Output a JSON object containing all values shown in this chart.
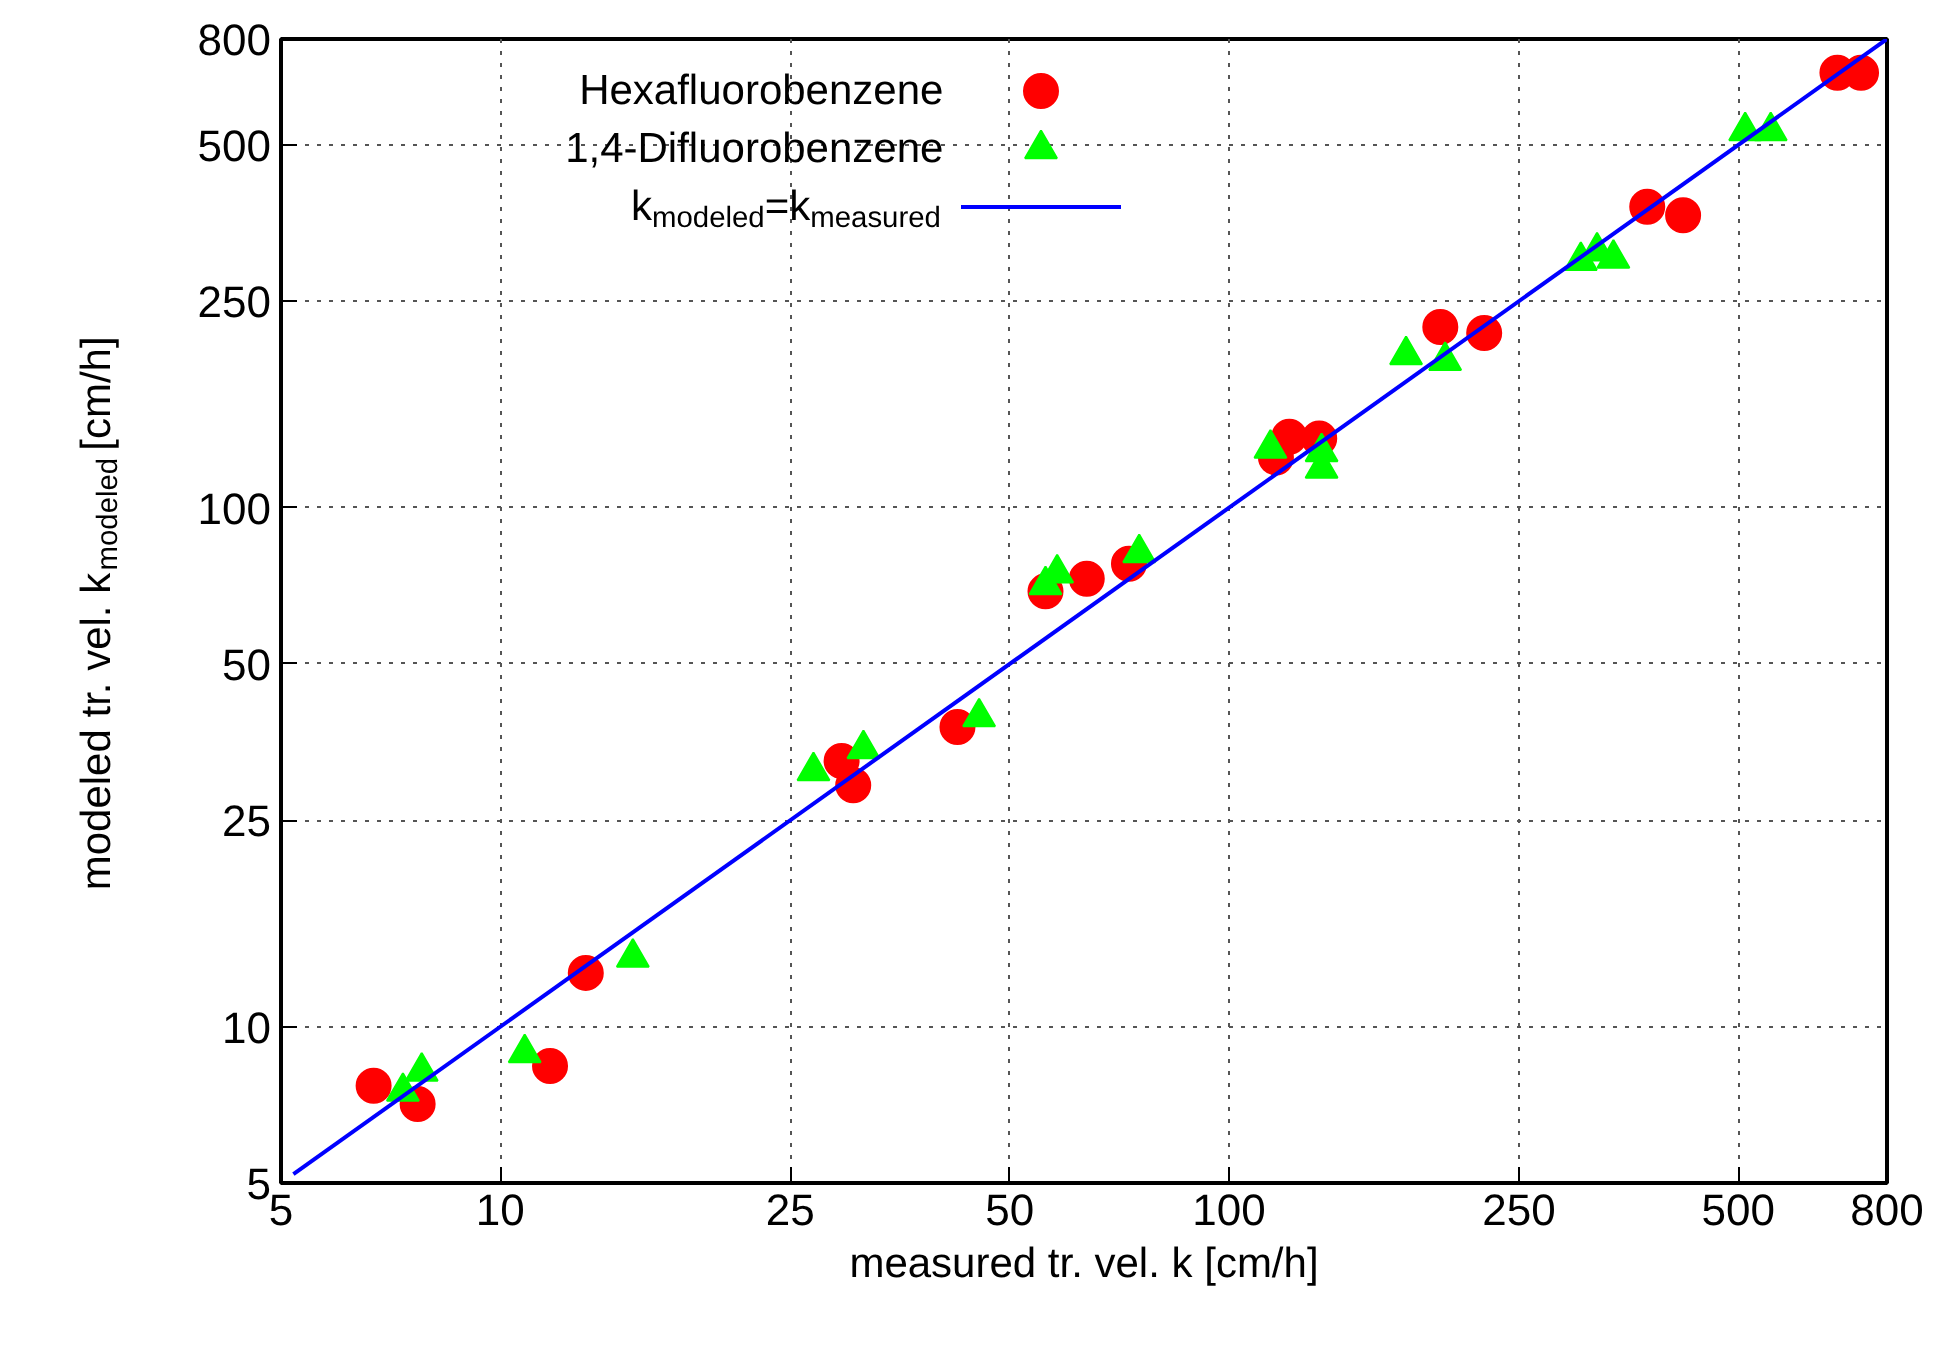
{
  "chart_data": {
    "type": "scatter",
    "xlabel": "measured tr. vel. k [cm/h]",
    "ylabel": "modeled tr. vel. k$_{modeled}$ [cm/h]",
    "log": "xy",
    "xlim": [
      5,
      800
    ],
    "ylim": [
      5,
      800
    ],
    "xticks": [
      5,
      10,
      25,
      50,
      100,
      250,
      500,
      800
    ],
    "yticks": [
      5,
      10,
      25,
      50,
      100,
      250,
      500,
      800
    ],
    "grid": true,
    "legend": "top left",
    "series": [
      {
        "name": "Hexafluorobenzene",
        "color": "#ff0000",
        "marker": "circle",
        "x": [
          6.7,
          7.7,
          11.7,
          13.1,
          29.4,
          30.5,
          42.4,
          56,
          63.8,
          72.9,
          116,
          121,
          133,
          195,
          224,
          375,
          420,
          684,
          737
        ],
        "values": [
          7.7,
          7.1,
          8.4,
          12.7,
          32.5,
          29.2,
          37.8,
          69,
          73,
          78,
          125,
          137,
          136,
          223,
          217,
          380,
          366,
          689,
          689
        ]
      },
      {
        "name": "1,4-Difluorobenzene",
        "color": "#00ff00",
        "marker": "triangle",
        "x": [
          7.35,
          7.8,
          10.8,
          15.2,
          26.9,
          31.5,
          45.4,
          56,
          58.1,
          75.3,
          114,
          134,
          134,
          175,
          198,
          304,
          320,
          337,
          511,
          554
        ],
        "values": [
          7.5,
          8.2,
          8.9,
          13.6,
          31.1,
          34.3,
          39.5,
          71,
          74.8,
          81.8,
          130,
          128,
          119,
          197,
          192,
          299,
          312,
          302,
          532,
          532
        ]
      },
      {
        "name": "k$_{modeled}$=k$_{measured}$",
        "color": "#0000ff",
        "type": "line",
        "marker": "none",
        "x": [
          5.2,
          800
        ],
        "values": [
          5.2,
          800
        ]
      }
    ]
  }
}
